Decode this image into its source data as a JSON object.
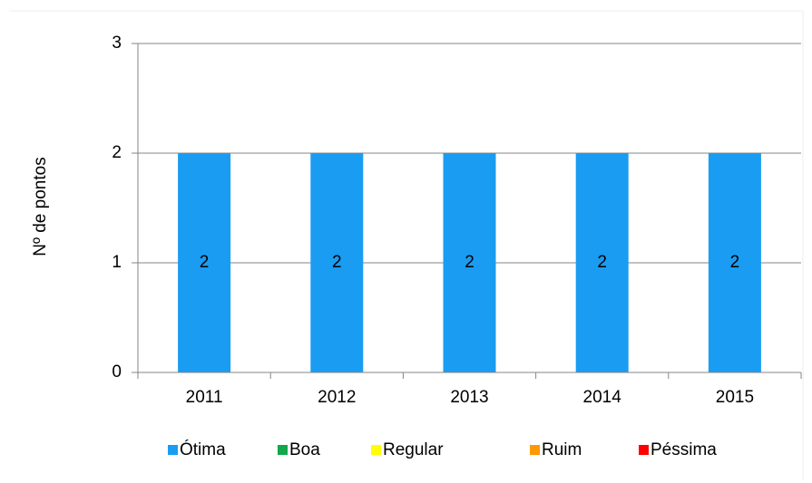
{
  "chart_data": {
    "type": "stacked_bar",
    "y_label": "Nº de pontos",
    "categories": [
      "2011",
      "2012",
      "2013",
      "2014",
      "2015"
    ],
    "series": [
      {
        "name": "Ótima",
        "color": "#1a9cf2",
        "values": [
          2,
          2,
          2,
          2,
          2
        ]
      },
      {
        "name": "Boa",
        "color": "#10a84a",
        "values": [
          0,
          0,
          0,
          0,
          0
        ]
      },
      {
        "name": "Regular",
        "color": "#ffff00",
        "values": [
          0,
          0,
          0,
          0,
          0
        ]
      },
      {
        "name": "Ruim",
        "color": "#ff9900",
        "values": [
          0,
          0,
          0,
          0,
          0
        ]
      },
      {
        "name": "Péssima",
        "color": "#ff0000",
        "values": [
          0,
          0,
          0,
          0,
          0
        ]
      }
    ],
    "data_labels_series": [
      0
    ],
    "ylim": [
      0,
      3
    ],
    "yticks": [
      0,
      1,
      2,
      3
    ],
    "grid": true,
    "legend": "bottom"
  }
}
